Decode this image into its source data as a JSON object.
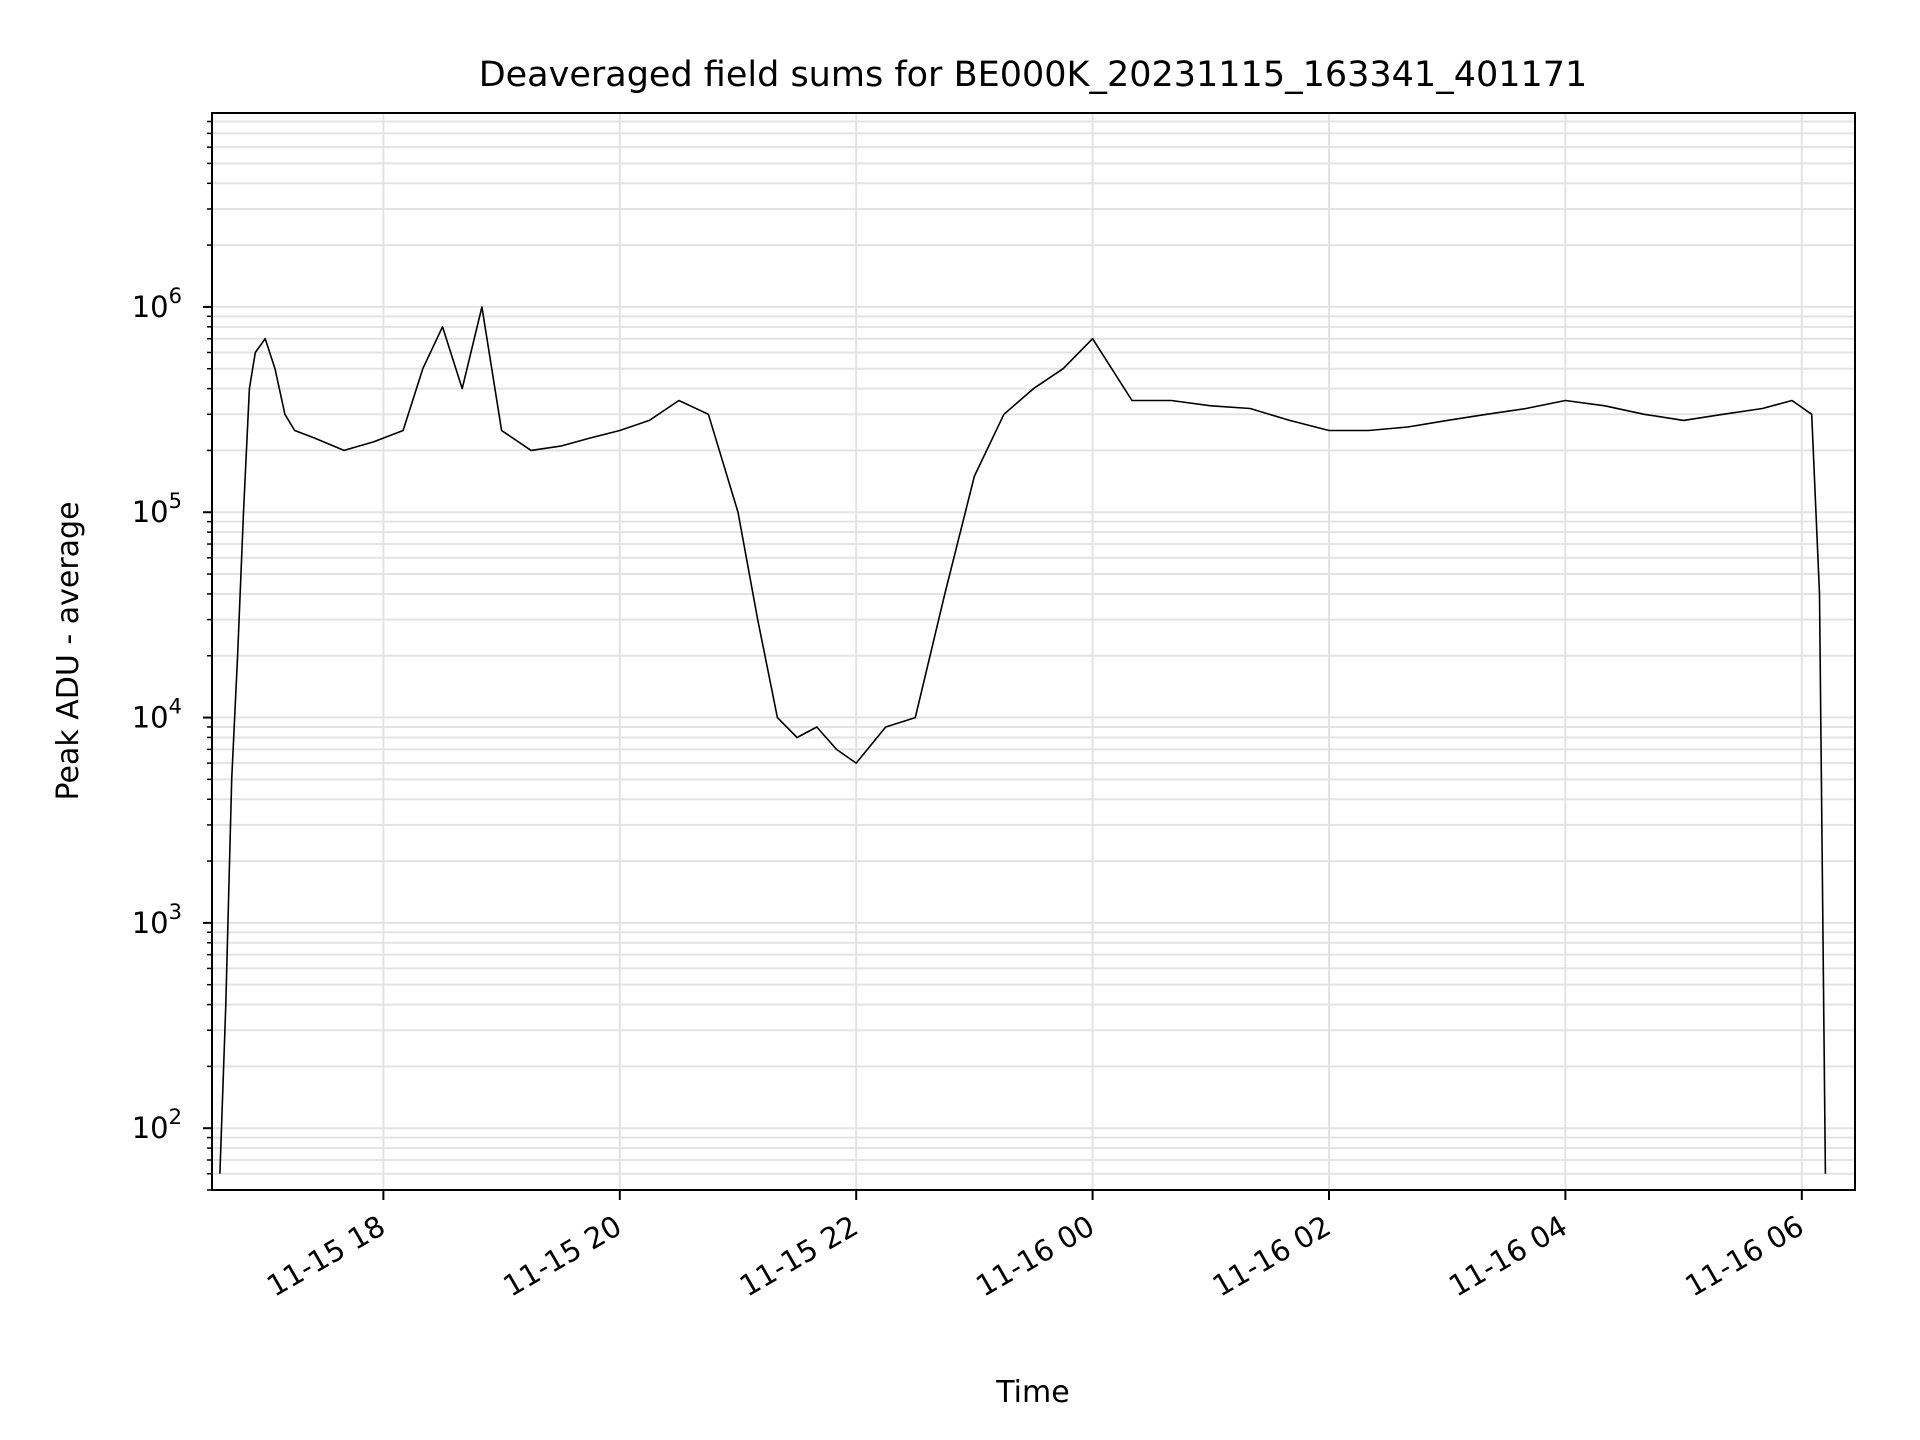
{
  "chart_data": {
    "type": "line",
    "title": "Deaveraged field sums for BE000K_20231115_163341_401171",
    "xlabel": "Time",
    "ylabel": "Peak ADU - average",
    "yscale": "log",
    "ylim": [
      50,
      8800000
    ],
    "xlim": [
      "2023-11-15 16:33",
      "2023-11-16 06:27"
    ],
    "grid": true,
    "line_color": "#000000",
    "x_ticks": [
      {
        "t": "2023-11-15 18:00",
        "label": "11-15 18"
      },
      {
        "t": "2023-11-15 20:00",
        "label": "11-15 20"
      },
      {
        "t": "2023-11-15 22:00",
        "label": "11-15 22"
      },
      {
        "t": "2023-11-16 00:00",
        "label": "11-16 00"
      },
      {
        "t": "2023-11-16 02:00",
        "label": "11-16 02"
      },
      {
        "t": "2023-11-16 04:00",
        "label": "11-16 04"
      },
      {
        "t": "2023-11-16 06:00",
        "label": "11-16 06"
      }
    ],
    "y_ticks": [
      {
        "v": 100,
        "base": "10",
        "exp": "2"
      },
      {
        "v": 1000,
        "base": "10",
        "exp": "3"
      },
      {
        "v": 10000,
        "base": "10",
        "exp": "4"
      },
      {
        "v": 100000,
        "base": "10",
        "exp": "5"
      },
      {
        "v": 1000000,
        "base": "10",
        "exp": "6"
      }
    ],
    "series": [
      {
        "x": [
          "2023-11-15 16:37",
          "2023-11-15 16:40",
          "2023-11-15 16:43",
          "2023-11-15 16:46",
          "2023-11-15 16:49",
          "2023-11-15 16:52",
          "2023-11-15 16:55",
          "2023-11-15 17:00",
          "2023-11-15 17:05",
          "2023-11-15 17:10",
          "2023-11-15 17:15",
          "2023-11-15 17:25",
          "2023-11-15 17:40",
          "2023-11-15 17:55",
          "2023-11-15 18:10",
          "2023-11-15 18:20",
          "2023-11-15 18:30",
          "2023-11-15 18:40",
          "2023-11-15 18:50",
          "2023-11-15 19:00",
          "2023-11-15 19:15",
          "2023-11-15 19:30",
          "2023-11-15 19:45",
          "2023-11-15 20:00",
          "2023-11-15 20:15",
          "2023-11-15 20:30",
          "2023-11-15 20:45",
          "2023-11-15 21:00",
          "2023-11-15 21:10",
          "2023-11-15 21:20",
          "2023-11-15 21:30",
          "2023-11-15 21:40",
          "2023-11-15 21:50",
          "2023-11-15 22:00",
          "2023-11-15 22:15",
          "2023-11-15 22:30",
          "2023-11-15 22:45",
          "2023-11-15 23:00",
          "2023-11-15 23:15",
          "2023-11-15 23:30",
          "2023-11-15 23:45",
          "2023-11-16 00:00",
          "2023-11-16 00:20",
          "2023-11-16 00:40",
          "2023-11-16 01:00",
          "2023-11-16 01:20",
          "2023-11-16 01:40",
          "2023-11-16 02:00",
          "2023-11-16 02:20",
          "2023-11-16 02:40",
          "2023-11-16 03:00",
          "2023-11-16 03:20",
          "2023-11-16 03:40",
          "2023-11-16 04:00",
          "2023-11-16 04:20",
          "2023-11-16 04:40",
          "2023-11-16 05:00",
          "2023-11-16 05:20",
          "2023-11-16 05:40",
          "2023-11-16 05:55",
          "2023-11-16 06:05",
          "2023-11-16 06:09",
          "2023-11-16 06:12"
        ],
        "y": [
          60,
          400,
          5000,
          20000,
          100000,
          400000,
          600000,
          700000,
          500000,
          300000,
          250000,
          230000,
          200000,
          220000,
          250000,
          500000,
          800000,
          400000,
          1000000,
          250000,
          200000,
          210000,
          230000,
          250000,
          280000,
          350000,
          300000,
          100000,
          30000,
          10000,
          8000,
          9000,
          7000,
          6000,
          9000,
          10000,
          40000,
          150000,
          300000,
          400000,
          500000,
          700000,
          350000,
          350000,
          330000,
          320000,
          280000,
          250000,
          250000,
          260000,
          280000,
          300000,
          320000,
          350000,
          330000,
          300000,
          280000,
          300000,
          320000,
          350000,
          300000,
          40000,
          60
        ]
      }
    ]
  }
}
